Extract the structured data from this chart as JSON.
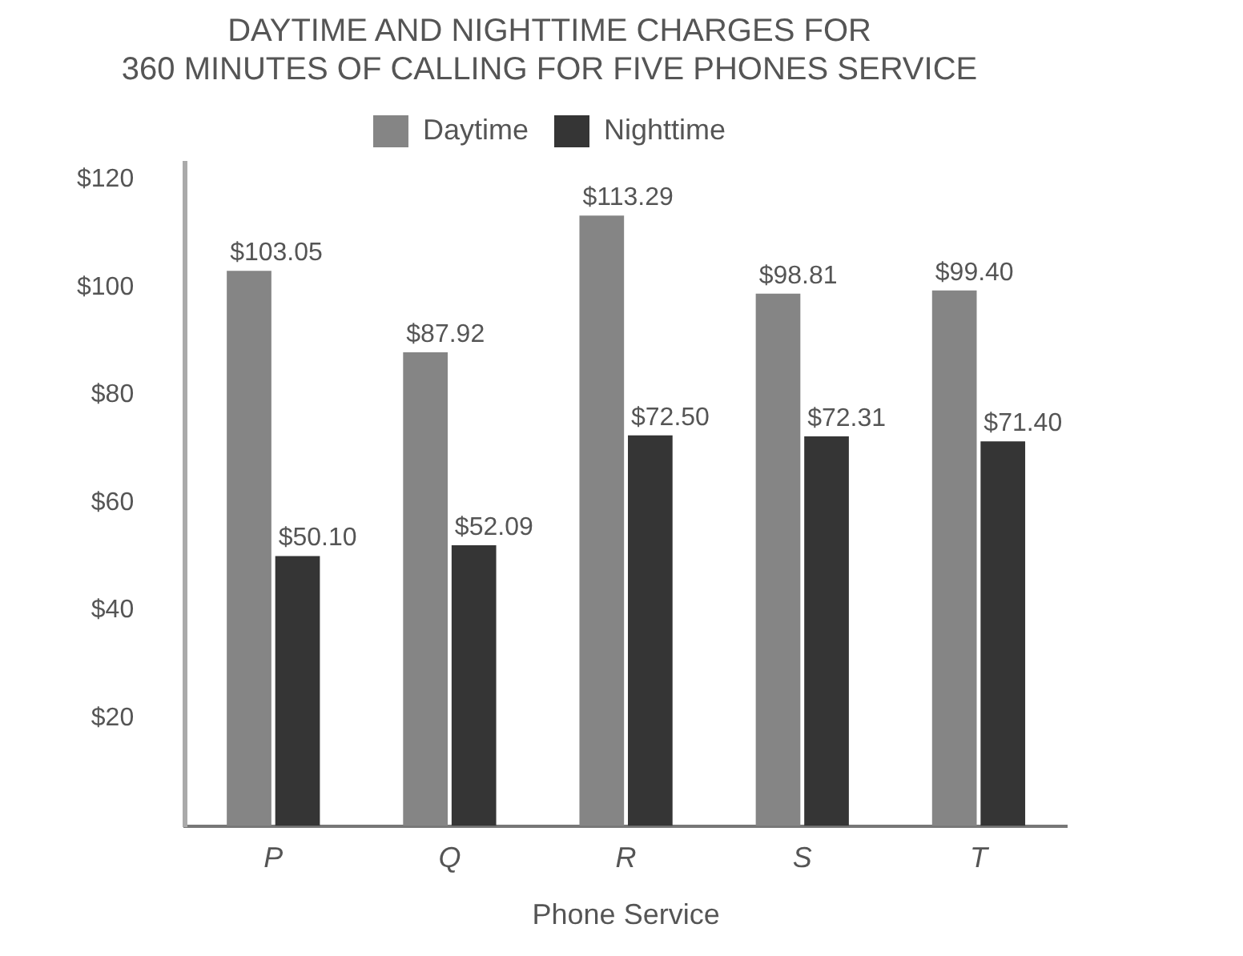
{
  "chart_data": {
    "type": "bar",
    "title": [
      "DAYTIME AND NIGHTTIME CHARGES FOR",
      "360 MINUTES OF CALLING FOR FIVE PHONES SERVICE"
    ],
    "xlabel": "Phone Service",
    "categories": [
      "P",
      "Q",
      "R",
      "S",
      "T"
    ],
    "series": [
      {
        "name": "Daytime",
        "color": "#858585",
        "values": [
          103.05,
          87.92,
          113.29,
          98.81,
          99.4
        ],
        "value_labels": [
          "$103.05",
          "$87.92",
          "$113.29",
          "$98.81",
          "$99.40"
        ]
      },
      {
        "name": "Nighttime",
        "color": "#353535",
        "values": [
          50.1,
          52.09,
          72.5,
          72.31,
          71.4
        ],
        "value_labels": [
          "$50.10",
          "$52.09",
          "$72.50",
          "$72.31",
          "$71.40"
        ]
      }
    ],
    "ylim": [
      0,
      123
    ],
    "yticks": [
      {
        "value": 20,
        "label": "$20"
      },
      {
        "value": 40,
        "label": "$40"
      },
      {
        "value": 60,
        "label": "$60"
      },
      {
        "value": 80,
        "label": "$80"
      },
      {
        "value": 100,
        "label": "$100"
      },
      {
        "value": 120,
        "label": "$120"
      }
    ],
    "grid": false,
    "legend": "top"
  }
}
